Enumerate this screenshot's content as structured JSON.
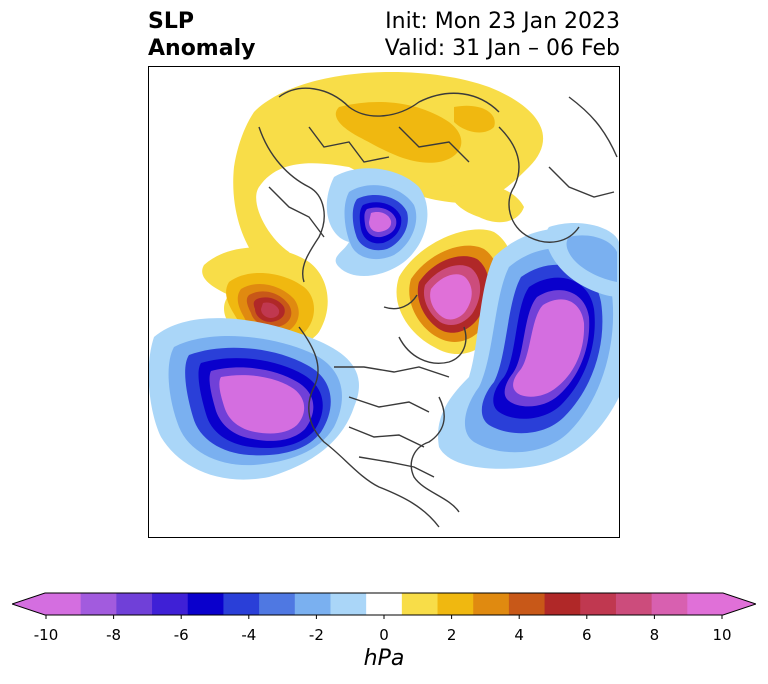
{
  "title": {
    "left_line1": "SLP",
    "left_line2": "Anomaly",
    "right_line1": "Init: Mon 23 Jan 2023",
    "right_line2": "Valid: 31 Jan – 06 Feb"
  },
  "map": {
    "projection": "north-polar-stereographic",
    "anomaly_centers": [
      {
        "region": "Scandinavia / Barents",
        "sign": "negative",
        "peak": "<= -10"
      },
      {
        "region": "Greenland",
        "sign": "positive",
        "peak": ">= 8"
      },
      {
        "region": "North Atlantic",
        "sign": "negative",
        "peak": "<= -10"
      },
      {
        "region": "North Pacific",
        "sign": "negative",
        "peak": "<= -10"
      },
      {
        "region": "Eastern Siberia",
        "sign": "positive",
        "peak": ">= 8"
      },
      {
        "region": "Eurasia",
        "sign": "positive",
        "peak": "2 to 4"
      }
    ]
  },
  "colorbar": {
    "unit": "hPa",
    "ticks": [
      "-10",
      "-8",
      "-6",
      "-4",
      "-2",
      "0",
      "2",
      "4",
      "6",
      "8",
      "10"
    ],
    "tick_values": [
      -10,
      -8,
      -6,
      -4,
      -2,
      0,
      2,
      4,
      6,
      8,
      10
    ],
    "colors": [
      "#d46ee0",
      "#a25bde",
      "#7040d8",
      "#3f20d6",
      "#0a00cc",
      "#2a3fd8",
      "#4f78e2",
      "#7ab0f0",
      "#aad6f8",
      "#ffffff",
      "#f8dd48",
      "#f0b810",
      "#e08a10",
      "#c85818",
      "#b02828",
      "#c03850",
      "#cc4c7c",
      "#d860b0",
      "#e070d8"
    ],
    "extend": "both"
  }
}
